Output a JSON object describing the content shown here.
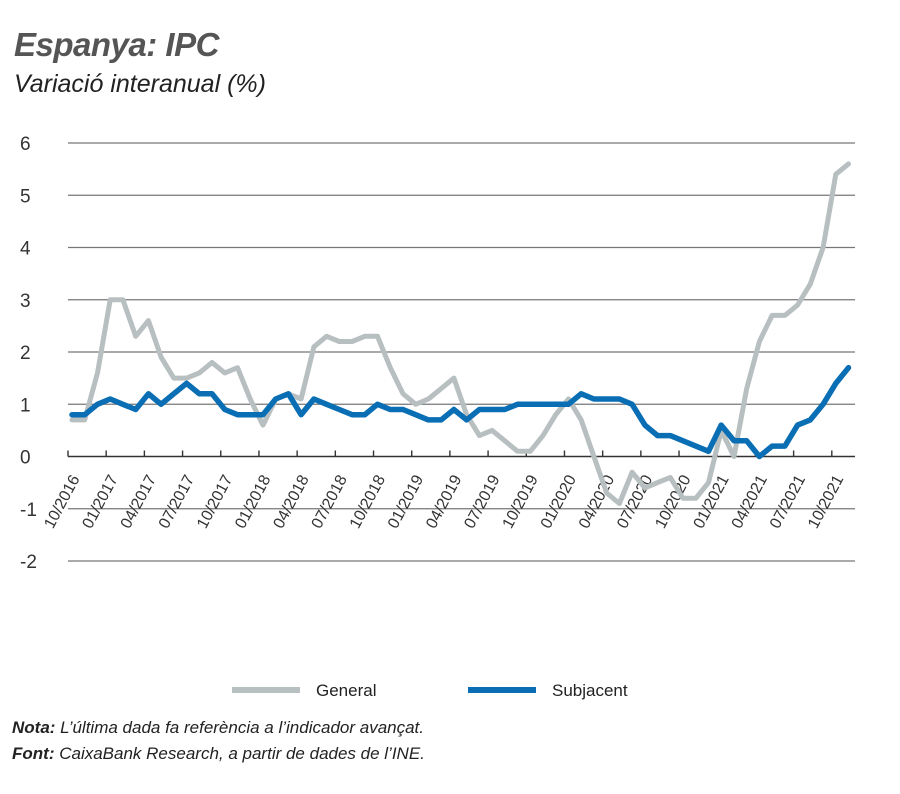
{
  "chart_data": {
    "type": "line",
    "title": "Espanya: IPC",
    "subtitle": "Variació interanual (%)",
    "xlabel": "",
    "ylabel": "",
    "ylim": [
      -2,
      6
    ],
    "yticks": [
      "-2",
      "-1",
      "0",
      "1",
      "2",
      "3",
      "4",
      "5",
      "6"
    ],
    "grid": true,
    "start_month": "10/2016",
    "xtick_labels": [
      "10/2016",
      "01/2017",
      "04/2017",
      "07/2017",
      "10/2017",
      "01/2018",
      "04/2018",
      "07/2018",
      "10/2018",
      "01/2019",
      "04/2019",
      "07/2019",
      "10/2019",
      "01/2020",
      "04/2020",
      "07/2020",
      "10/2020",
      "01/2021",
      "04/2021",
      "07/2021",
      "10/2021"
    ],
    "legend_position": "bottom",
    "series": [
      {
        "name": "General",
        "color": "#b8bfc1",
        "values": [
          0.7,
          0.7,
          1.6,
          3.0,
          3.0,
          2.3,
          2.6,
          1.9,
          1.5,
          1.5,
          1.6,
          1.8,
          1.6,
          1.7,
          1.1,
          0.6,
          1.1,
          1.2,
          1.1,
          2.1,
          2.3,
          2.2,
          2.2,
          2.3,
          2.3,
          1.7,
          1.2,
          1.0,
          1.1,
          1.3,
          1.5,
          0.8,
          0.4,
          0.5,
          0.3,
          0.1,
          0.1,
          0.4,
          0.8,
          1.1,
          0.7,
          0.0,
          -0.7,
          -0.9,
          -0.3,
          -0.6,
          -0.5,
          -0.4,
          -0.8,
          -0.8,
          -0.5,
          0.5,
          0.0,
          1.3,
          2.2,
          2.7,
          2.7,
          2.9,
          3.3,
          4.0,
          5.4,
          5.6
        ]
      },
      {
        "name": "Subjacent",
        "color": "#0a6eb4",
        "values": [
          0.8,
          0.8,
          1.0,
          1.1,
          1.0,
          0.9,
          1.2,
          1.0,
          1.2,
          1.4,
          1.2,
          1.2,
          0.9,
          0.8,
          0.8,
          0.8,
          1.1,
          1.2,
          0.8,
          1.1,
          1.0,
          0.9,
          0.8,
          0.8,
          1.0,
          0.9,
          0.9,
          0.8,
          0.7,
          0.7,
          0.9,
          0.7,
          0.9,
          0.9,
          0.9,
          1.0,
          1.0,
          1.0,
          1.0,
          1.0,
          1.2,
          1.1,
          1.1,
          1.1,
          1.0,
          0.6,
          0.4,
          0.4,
          0.3,
          0.2,
          0.1,
          0.6,
          0.3,
          0.3,
          0.0,
          0.2,
          0.2,
          0.6,
          0.7,
          1.0,
          1.4,
          1.7
        ]
      }
    ]
  },
  "notes": {
    "nota_label": "Nota:",
    "nota_text": " L’última dada fa referència a l’indicador avançat.",
    "font_label": "Font:",
    "font_text": " CaixaBank Research, a partir de dades de l’INE."
  }
}
